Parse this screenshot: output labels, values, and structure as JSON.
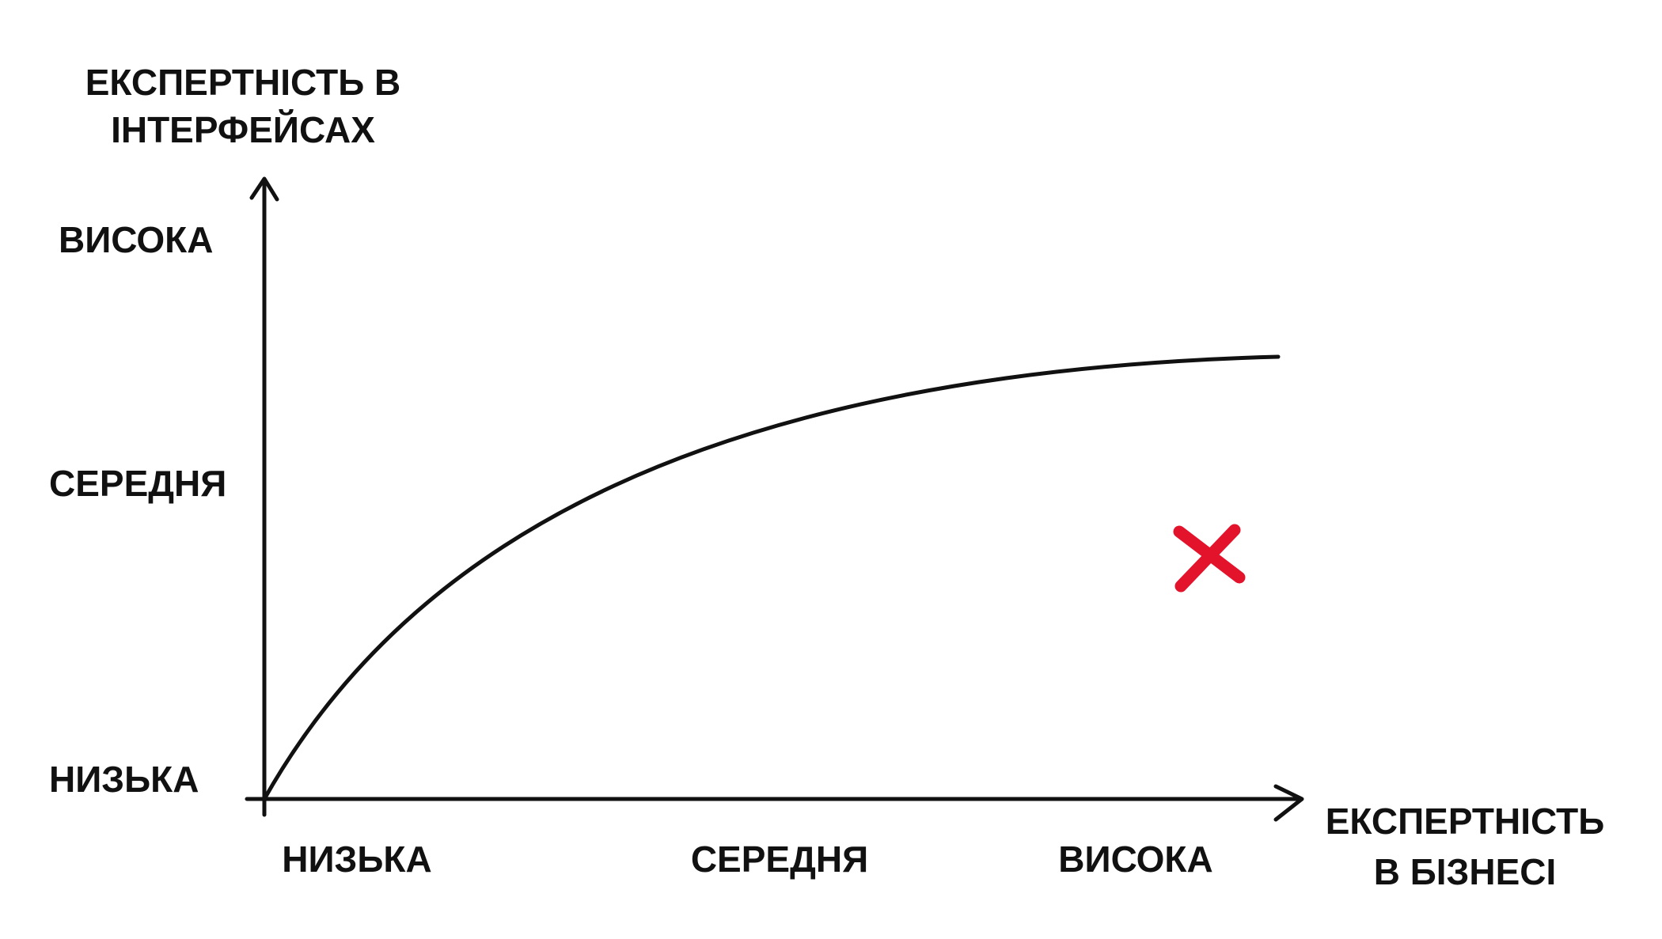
{
  "y_axis": {
    "title": [
      "ЕКСПЕРТНІСТЬ В",
      "ІНТЕРФЕЙСАХ"
    ],
    "labels": [
      "ВИСОКА",
      "СЕРЕДНЯ",
      "НИЗЬКА"
    ]
  },
  "x_axis": {
    "title": [
      "ЕКСПЕРТНІСТЬ",
      "В БІЗНЕСІ"
    ],
    "labels": [
      "НИЗЬКА",
      "СЕРЕДНЯ",
      "ВИСОКА"
    ]
  }
}
